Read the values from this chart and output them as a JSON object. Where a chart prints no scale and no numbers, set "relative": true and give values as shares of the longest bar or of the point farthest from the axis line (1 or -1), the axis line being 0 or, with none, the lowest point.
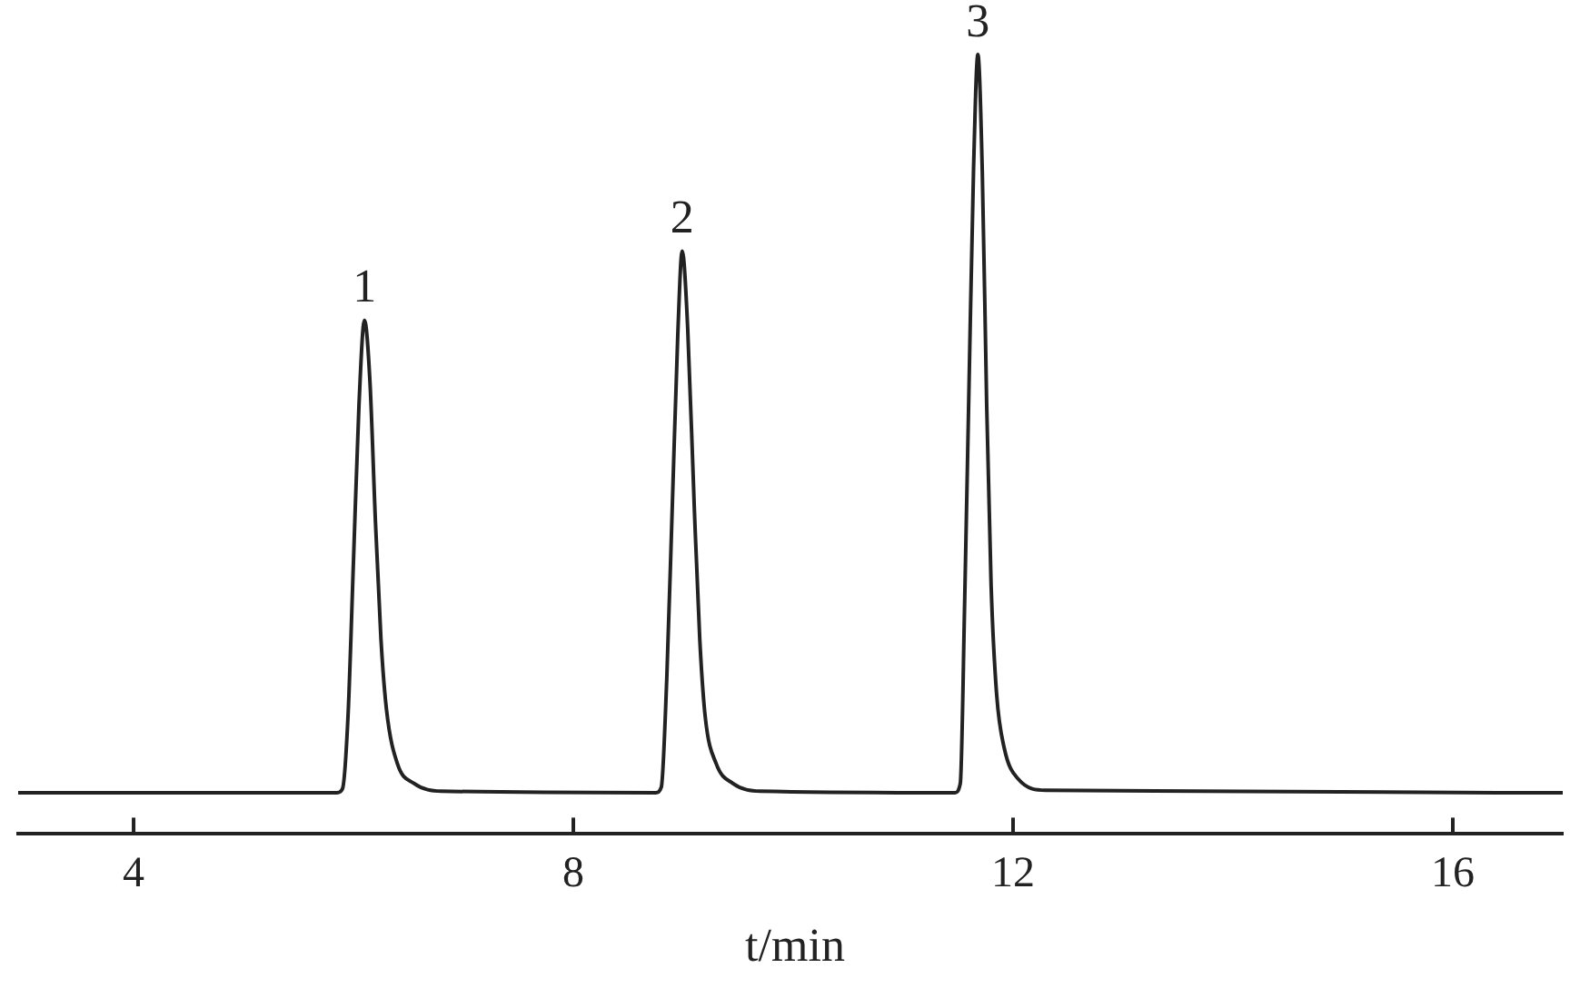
{
  "chart_data": {
    "type": "line",
    "relative": true,
    "xlabel": "t/min",
    "color": "#222222",
    "marker": "none",
    "x": [
      2.95,
      5.85,
      5.9,
      5.95,
      6.0,
      6.05,
      6.1,
      6.15,
      6.2,
      6.25,
      6.3,
      6.4,
      6.55,
      6.8,
      8.75,
      8.8,
      8.85,
      8.9,
      8.95,
      8.99,
      9.04,
      9.1,
      9.15,
      9.2,
      9.3,
      9.45,
      9.7,
      11.47,
      11.52,
      11.56,
      11.6,
      11.64,
      11.68,
      11.72,
      11.76,
      11.8,
      11.85,
      11.92,
      12.05,
      12.3,
      17
    ],
    "values": [
      0.053,
      0.053,
      0.058,
      0.15,
      0.35,
      0.55,
      0.659,
      0.58,
      0.4,
      0.25,
      0.16,
      0.09,
      0.065,
      0.055,
      0.053,
      0.06,
      0.2,
      0.42,
      0.64,
      0.748,
      0.65,
      0.42,
      0.25,
      0.15,
      0.09,
      0.065,
      0.055,
      0.053,
      0.065,
      0.3,
      0.58,
      0.85,
      1,
      0.85,
      0.55,
      0.32,
      0.18,
      0.11,
      0.07,
      0.056,
      0.053
    ],
    "xlim": [
      2.95,
      17
    ],
    "xticks": [
      4,
      8,
      12,
      16
    ],
    "annotations": [
      {
        "text": "1",
        "x": 6.1,
        "y": 0.659
      },
      {
        "text": "2",
        "x": 8.99,
        "y": 0.748
      },
      {
        "text": "3",
        "x": 11.68,
        "y": 1
      }
    ]
  }
}
